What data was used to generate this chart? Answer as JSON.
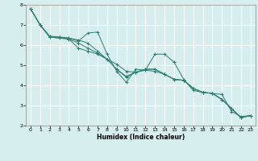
{
  "xlabel": "Humidex (Indice chaleur)",
  "ylabel": "",
  "xlim": [
    -0.5,
    23.5
  ],
  "ylim": [
    2,
    8
  ],
  "yticks": [
    2,
    3,
    4,
    5,
    6,
    7,
    8
  ],
  "xticks": [
    0,
    1,
    2,
    3,
    4,
    5,
    6,
    7,
    8,
    9,
    10,
    11,
    12,
    13,
    14,
    15,
    16,
    17,
    18,
    19,
    20,
    21,
    22,
    23
  ],
  "line_color": "#2e7d6e",
  "bg_color": "#d6eeee",
  "grid_color": "#ffffff",
  "lines": [
    [
      7.8,
      7.0,
      6.4,
      6.4,
      6.35,
      6.2,
      6.6,
      6.65,
      5.55,
      4.7,
      4.15,
      4.8,
      4.75,
      5.55,
      5.55,
      5.15,
      4.3,
      3.75,
      3.65,
      3.6,
      3.55,
      2.7,
      2.45,
      2.5
    ],
    [
      7.8,
      7.0,
      6.4,
      6.35,
      6.3,
      6.1,
      5.85,
      5.6,
      5.3,
      4.8,
      4.4,
      4.65,
      4.8,
      4.8,
      4.55,
      4.3,
      4.25,
      3.85,
      3.65,
      3.6,
      3.3,
      2.85,
      2.4,
      2.5
    ],
    [
      7.8,
      7.0,
      6.4,
      6.35,
      6.3,
      5.85,
      5.7,
      5.55,
      5.3,
      5.05,
      4.7,
      4.65,
      4.75,
      4.7,
      4.55,
      4.3,
      4.25,
      3.85,
      3.65,
      3.6,
      3.3,
      2.85,
      2.4,
      2.5
    ],
    [
      7.8,
      7.0,
      6.45,
      6.4,
      6.35,
      6.25,
      6.1,
      5.7,
      5.3,
      4.8,
      4.45,
      4.65,
      4.8,
      4.8,
      4.55,
      4.3,
      4.25,
      3.85,
      3.65,
      3.6,
      3.3,
      2.85,
      2.4,
      2.5
    ]
  ]
}
